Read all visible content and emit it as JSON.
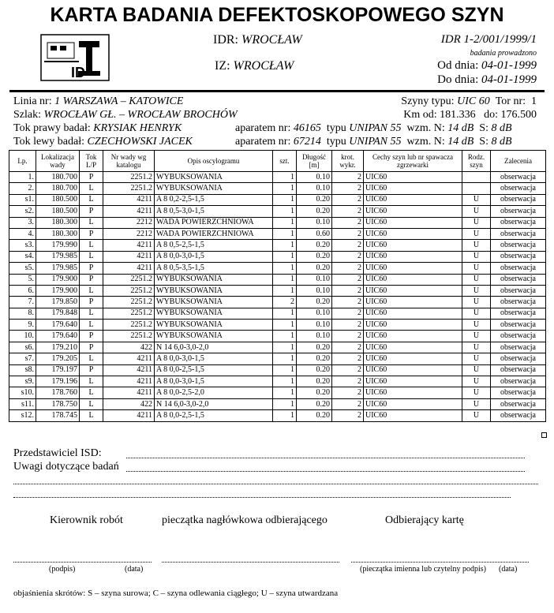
{
  "header": {
    "title": "KARTA BADANIA DEFEKTOSKOPOWEGO SZYN",
    "logo_text": "ID",
    "idr_label": "IDR:",
    "idr_value": "WROCŁAW",
    "iz_label": "IZ:",
    "iz_value": "WROCŁAW",
    "doc_number": "IDR 1-2/001/1999/1",
    "period_note": "badania prowadzono",
    "from_label": "Od dnia:",
    "from_date": "04-01-1999",
    "to_label": "Do dnia:",
    "to_date": "04-01-1999"
  },
  "info": {
    "line_label": "Linia nr:",
    "line_value": "1  WARSZAWA – KATOWICE",
    "rail_type_label": "Szyny typu:",
    "rail_type_value": "UIC 60",
    "track_label": "Tor nr:",
    "track_value": "1",
    "route_label": "Szlak:",
    "route_value": "WROCŁAW GŁ. – WROCŁAW BROCHÓW",
    "km_from_label": "Km od:",
    "km_from_value": "181.336",
    "km_to_label": "do:",
    "km_to_value": "176.500",
    "right": {
      "label": "Tok prawy badał:",
      "inspector": "KRYSIAK HENRYK",
      "device_label": "aparatem nr:",
      "device_value": "46165",
      "type_label": "typu",
      "type_value": "UNIPAN 55",
      "gain_n_label": "wzm. N:",
      "gain_n_value": "14 dB",
      "gain_s_label": "S:",
      "gain_s_value": "8 dB"
    },
    "left": {
      "label": "Tok lewy badał:",
      "inspector": "CZECHOWSKI JACEK",
      "device_label": "aparatem nr:",
      "device_value": "67214",
      "type_label": "typu",
      "type_value": "UNIPAN 55",
      "gain_n_label": "wzm. N:",
      "gain_n_value": "14 dB",
      "gain_s_label": "S:",
      "gain_s_value": "8 dB"
    }
  },
  "table": {
    "columns": [
      "Lp.",
      "Lokalizacja wady",
      "Tok L/P",
      "Nr wady wg katalogu",
      "Opis oscylogramu",
      "szt.",
      "Długość [m]",
      "krot. wykr.",
      "Cechy szyn lub nr spawacza zgrzewarki",
      "Rodz. szyn",
      "Zalecenia"
    ],
    "rows": [
      [
        "1.",
        "180.700",
        "P",
        "2251.2",
        "WYBUKSOWANIA",
        "1",
        "0.10",
        "2",
        "UIC60",
        null,
        "obserwacja"
      ],
      [
        "2.",
        "180.700",
        "L",
        "2251.2",
        "WYBUKSOWANIA",
        "1",
        "0.10",
        "2",
        "UIC60",
        null,
        "obserwacja"
      ],
      [
        "s1.",
        "180.500",
        "L",
        "4211",
        "A 8 0,2-2,5-1,5",
        "1",
        "0.20",
        "2",
        "UIC60",
        "U",
        "obserwacja"
      ],
      [
        "s2.",
        "180.500",
        "P",
        "4211",
        "A 8 0,5-3,0-1,5",
        "1",
        "0.20",
        "2",
        "UIC60",
        "U",
        "obserwacja"
      ],
      [
        "3.",
        "180.300",
        "L",
        "2212",
        "WADA POWIERZCHNIOWA",
        "1",
        "0.10",
        "2",
        "UIC60",
        "U",
        "obserwacja"
      ],
      [
        "4.",
        "180.300",
        "P",
        "2212",
        "WADA POWIERZCHNIOWA",
        "1",
        "0.60",
        "2",
        "UIC60",
        "U",
        "obserwacja"
      ],
      [
        "s3.",
        "179.990",
        "L",
        "4211",
        "A 8 0,5-2,5-1,5",
        "1",
        "0.20",
        "2",
        "UIC60",
        "U",
        "obserwacja"
      ],
      [
        "s4.",
        "179.985",
        "L",
        "4211",
        "A 8 0,0-3,0-1,5",
        "1",
        "0.20",
        "2",
        "UIC60",
        "U",
        "obserwacja"
      ],
      [
        "s5.",
        "179.985",
        "P",
        "4211",
        "A 8 0,5-3,5-1,5",
        "1",
        "0.20",
        "2",
        "UIC60",
        "U",
        "obserwacja"
      ],
      [
        "5.",
        "179.900",
        "P",
        "2251.2",
        "WYBUKSOWANIA",
        "1",
        "0.10",
        "2",
        "UIC60",
        "U",
        "obserwacja"
      ],
      [
        "6.",
        "179.900",
        "L",
        "2251.2",
        "WYBUKSOWANIA",
        "1",
        "0.10",
        "2",
        "UIC60",
        "U",
        "obserwacja"
      ],
      [
        "7.",
        "179.850",
        "P",
        "2251.2",
        "WYBUKSOWANIA",
        "2",
        "0.20",
        "2",
        "UIC60",
        "U",
        "obserwacja"
      ],
      [
        "8.",
        "179.848",
        "L",
        "2251.2",
        "WYBUKSOWANIA",
        "1",
        "0.10",
        "2",
        "UIC60",
        "U",
        "obserwacja"
      ],
      [
        "9.",
        "179.640",
        "L",
        "2251.2",
        "WYBUKSOWANIA",
        "1",
        "0.10",
        "2",
        "UIC60",
        "U",
        "obserwacja"
      ],
      [
        "10.",
        "179.640",
        "P",
        "2251.2",
        "WYBUKSOWANIA",
        "1",
        "0.10",
        "2",
        "UIC60",
        "U",
        "obserwacja"
      ],
      [
        "s6.",
        "179.210",
        "P",
        "422",
        "N 14 6,0-3,0-2,0",
        "1",
        "0.20",
        "2",
        "UIC60",
        "U",
        "obserwacja"
      ],
      [
        "s7.",
        "179.205",
        "L",
        "4211",
        "A 8 0,0-3,0-1,5",
        "1",
        "0.20",
        "2",
        "UIC60",
        "U",
        "obserwacja"
      ],
      [
        "s8.",
        "179.197",
        "P",
        "4211",
        "A 8 0,0-2,5-1,5",
        "1",
        "0.20",
        "2",
        "UIC60",
        "U",
        "obserwacja"
      ],
      [
        "s9.",
        "179.196",
        "L",
        "4211",
        "A 8 0,0-3,0-1,5",
        "1",
        "0.20",
        "2",
        "UIC60",
        "U",
        "obserwacja"
      ],
      [
        "s10.",
        "178.760",
        "L",
        "4211",
        "A 8 0,0-2,5-2,0",
        "1",
        "0.20",
        "2",
        "UIC60",
        "U",
        "obserwacja"
      ],
      [
        "s11.",
        "178.750",
        "L",
        "422",
        "N 14 6,0-3,0-2,0",
        "1",
        "0.20",
        "2",
        "UIC60",
        "U",
        "obserwacja"
      ],
      [
        "s12.",
        "178.745",
        "L",
        "4211",
        "A 8 0,0-2,5-1,5",
        "1",
        "0.20",
        "2",
        "UIC60",
        "U",
        "obserwacja"
      ]
    ]
  },
  "footer": {
    "isd_label": "Przedstawiciel ISD:",
    "remarks_label": "Uwagi dotyczące badań",
    "manager": "Kierownik robót",
    "stamp": "pieczątka nagłówkowa odbierającego",
    "receiver": "Odbierający kartę",
    "signature": "(podpis)",
    "date1": "(data)",
    "name_stamp": "(pieczątka imienna lub czytelny podpis)",
    "date2": "(data)",
    "legend": "objaśnienia skrótów: S – szyna surowa; C – szyna odlewania ciągłego; U – szyna utwardzana"
  }
}
